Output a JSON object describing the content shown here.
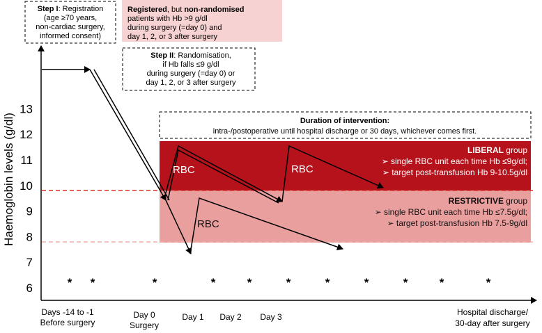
{
  "y_axis": {
    "label": "Haemoglobin levels (g/dl)",
    "ticks": [
      "6",
      "7",
      "8",
      "9",
      "10",
      "11",
      "12",
      "13"
    ]
  },
  "x_axis": {
    "labels": [
      {
        "line1": "Days -14 to -1",
        "line2": "Before surgery"
      },
      {
        "line1": "Day 0",
        "line2": "Surgery"
      },
      {
        "line1": "Day 1",
        "line2": ""
      },
      {
        "line1": "Day 2",
        "line2": ""
      },
      {
        "line1": "Day 3",
        "line2": ""
      },
      {
        "line1": "Hospital discharge/",
        "line2": "30-day after surgery"
      }
    ]
  },
  "step1": {
    "bold": "Step I",
    "line1_rest": ": Registration",
    "line2": "(age ≥70 years,",
    "line3": "non-cardiac surgery,",
    "line4": "informed consent)"
  },
  "registered_box": {
    "bold1": "Registered",
    "mid": ", but ",
    "bold2": "non-randomised",
    "line2": "patients with Hb >9 g/dl",
    "line3": "during surgery (=day 0) and",
    "line4": "day 1, 2, or 3 after surgery"
  },
  "step2": {
    "bold": "Step II",
    "line1_rest": ": Randomisation,",
    "line2": "if Hb falls  ≤9 g/dl",
    "line3": "during surgery (=day 0) or",
    "line4": "day 1, 2, or 3 after surgery"
  },
  "duration": {
    "title": "Duration of intervention:",
    "text": "intra-/postoperative until hospital discharge or 30 days, whichever comes first."
  },
  "liberal": {
    "name_bold": "LIBERAL",
    "name_rest": " group",
    "bullet1": "➢  single RBC unit each time Hb ≤9g/dl;",
    "bullet2": "➢  target post-transfusion Hb 9-10.5g/dl"
  },
  "restrictive": {
    "name_bold": "RESTRICTIVE",
    "name_rest": " group",
    "bullet1": "➢  single RBC unit each time Hb ≤7.5g/dl;",
    "bullet2": "➢  target post-transfusion Hb 7.5-9g/dl"
  },
  "rbc_labels": [
    "RBC",
    "RBC",
    "RBC"
  ],
  "asterisk": "*",
  "colors": {
    "liberal": "#b5121b",
    "restrictive": "#ea9f9f",
    "registered": "#f7d2d2",
    "threshold9": "#d9302a",
    "threshold75": "#f0b0a8"
  }
}
